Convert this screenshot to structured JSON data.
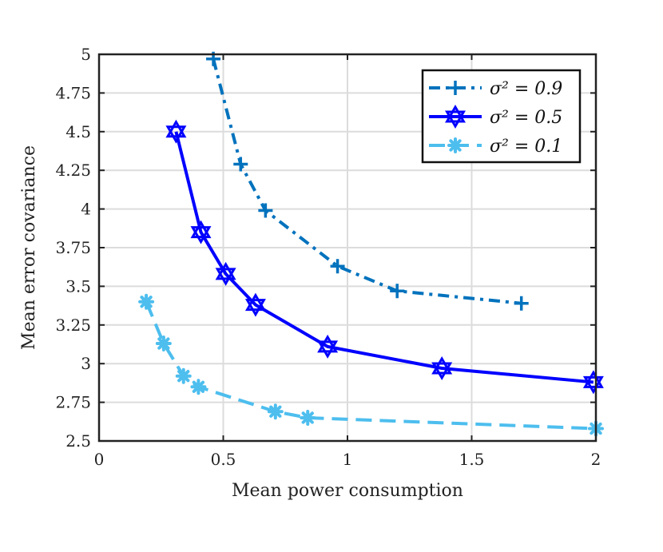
{
  "chart_data": {
    "type": "line",
    "xlabel": "Mean power consumption",
    "ylabel": "Mean error covariance",
    "xlim": [
      0,
      2
    ],
    "ylim": [
      2.5,
      5
    ],
    "xticks": [
      0,
      0.5,
      1,
      1.5,
      2
    ],
    "xtick_labels": [
      "0",
      "0.5",
      "1",
      "1.5",
      "2"
    ],
    "yticks": [
      2.5,
      2.75,
      3,
      3.25,
      3.5,
      3.75,
      4,
      4.25,
      4.5,
      4.75,
      5
    ],
    "ytick_labels": [
      "2.5",
      "2.75",
      "3",
      "3.25",
      "3.5",
      "3.75",
      "4",
      "4.25",
      "4.5",
      "4.75",
      "5"
    ],
    "grid": true,
    "legend_position": "top-right",
    "series": [
      {
        "name": "σ² = 0.9",
        "legend_label": "σ² = 0.9",
        "color": "#0072BD",
        "line_style": "dash-dot",
        "marker": "plus",
        "x": [
          0.46,
          0.57,
          0.67,
          0.96,
          1.2,
          1.7
        ],
        "y": [
          4.97,
          4.29,
          3.99,
          3.63,
          3.47,
          3.39
        ]
      },
      {
        "name": "σ² = 0.5",
        "legend_label": "σ² = 0.5",
        "color": "#0000FF",
        "line_style": "solid",
        "marker": "hexagram",
        "x": [
          0.31,
          0.41,
          0.51,
          0.63,
          0.92,
          1.38,
          1.99
        ],
        "y": [
          4.5,
          3.85,
          3.58,
          3.38,
          3.11,
          2.97,
          2.88
        ]
      },
      {
        "name": "σ² = 0.1",
        "legend_label": "σ² = 0.1",
        "color": "#4DBEEE",
        "line_style": "dashed",
        "marker": "asterisk",
        "x": [
          0.19,
          0.26,
          0.34,
          0.4,
          0.71,
          0.84,
          2.0
        ],
        "y": [
          3.4,
          3.13,
          2.92,
          2.85,
          2.69,
          2.65,
          2.58
        ]
      }
    ]
  }
}
